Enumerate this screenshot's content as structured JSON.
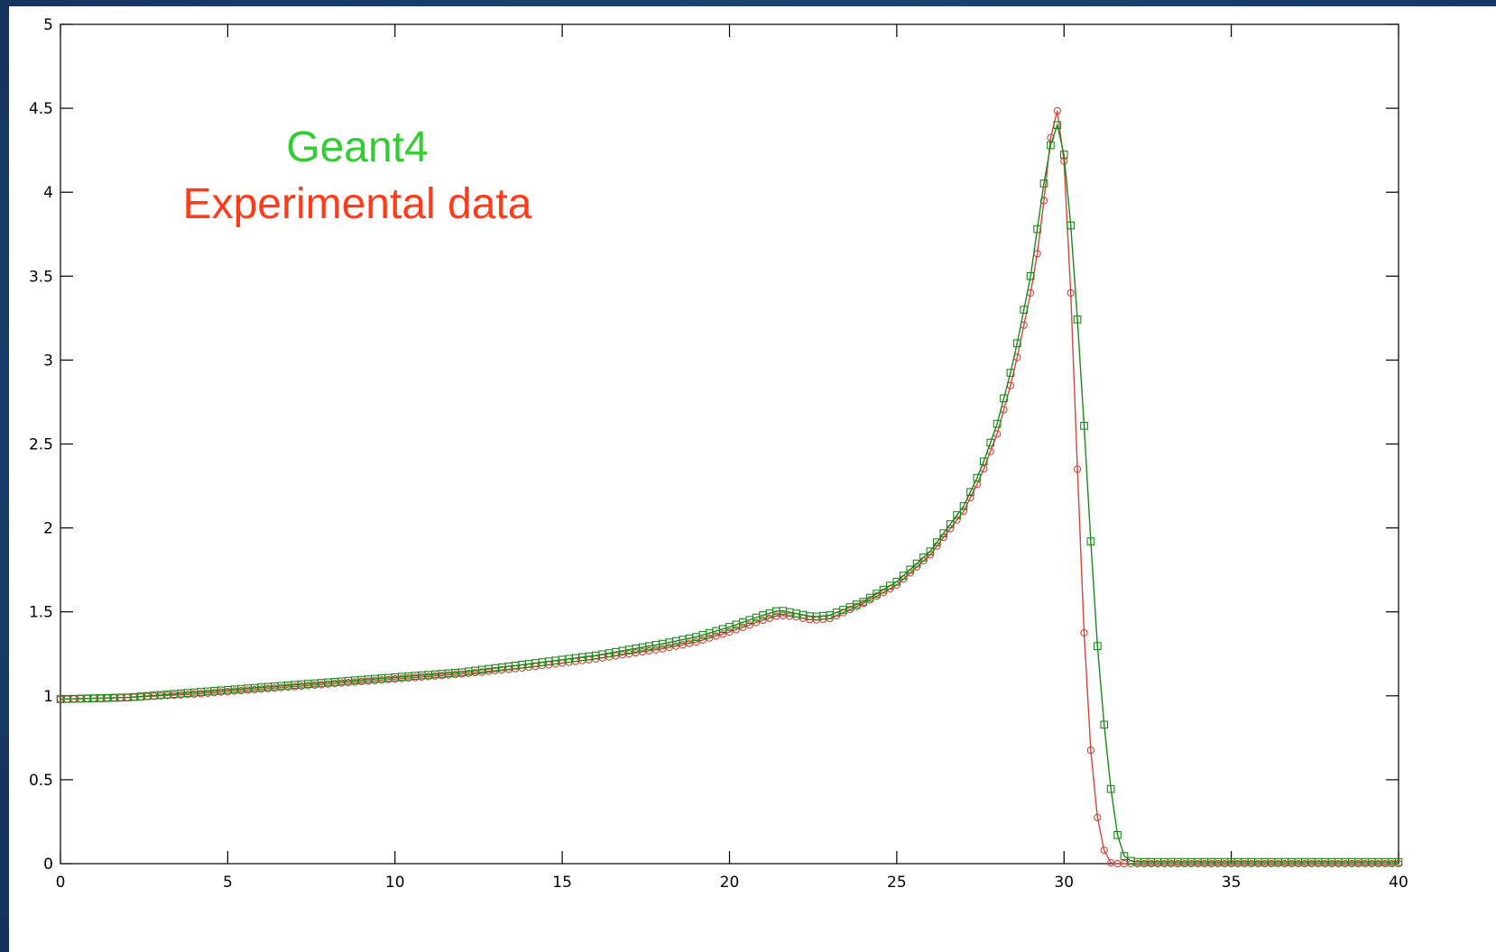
{
  "colors": {
    "background": "#1e4676",
    "plot_background": "#ffffff",
    "axis": "#000000",
    "experimental": "#e0402a",
    "experimental_marker": "#d2463c",
    "geant4": "#1a8a1a",
    "geant4_label": "#33cc33"
  },
  "annotations": {
    "geant4_label": "Geant4",
    "experimental_label": "Experimental data"
  },
  "chart_data": {
    "type": "line",
    "title": "",
    "xlabel": "",
    "ylabel": "",
    "xlim": [
      0,
      40
    ],
    "ylim": [
      0,
      5
    ],
    "grid": false,
    "x_ticks": [
      0,
      5,
      10,
      15,
      20,
      25,
      30,
      35,
      40
    ],
    "x_tick_labels": [
      "0",
      "5",
      "10",
      "15",
      "20",
      "25",
      "30",
      "35",
      "40"
    ],
    "y_ticks": [
      0,
      0.5,
      1,
      1.5,
      2,
      2.5,
      3,
      3.5,
      4,
      4.5,
      5
    ],
    "y_tick_labels": [
      "0",
      "0.5",
      "1",
      "1.5",
      "2",
      "2.5",
      "3",
      "3.5",
      "4",
      "4.5",
      "5"
    ],
    "series": [
      {
        "name": "Experimental data",
        "marker": "circle",
        "color": "#d2463c",
        "points": [
          [
            0,
            0.98
          ],
          [
            2,
            0.99
          ],
          [
            4,
            1.01
          ],
          [
            6,
            1.04
          ],
          [
            8,
            1.07
          ],
          [
            10,
            1.1
          ],
          [
            12,
            1.13
          ],
          [
            14,
            1.17
          ],
          [
            16,
            1.22
          ],
          [
            18,
            1.28
          ],
          [
            19,
            1.32
          ],
          [
            20,
            1.38
          ],
          [
            21,
            1.45
          ],
          [
            21.5,
            1.48
          ],
          [
            22,
            1.47
          ],
          [
            22.5,
            1.45
          ],
          [
            23,
            1.46
          ],
          [
            24,
            1.55
          ],
          [
            25,
            1.66
          ],
          [
            26,
            1.84
          ],
          [
            27,
            2.1
          ],
          [
            27.5,
            2.3
          ],
          [
            28,
            2.56
          ],
          [
            28.5,
            2.92
          ],
          [
            29,
            3.4
          ],
          [
            29.3,
            3.75
          ],
          [
            29.5,
            4.15
          ],
          [
            29.7,
            4.5
          ],
          [
            29.9,
            4.47
          ],
          [
            30.1,
            3.9
          ],
          [
            30.3,
            2.9
          ],
          [
            30.5,
            1.8
          ],
          [
            30.7,
            0.95
          ],
          [
            30.9,
            0.4
          ],
          [
            31.1,
            0.15
          ],
          [
            31.3,
            0.01
          ],
          [
            31.5,
            0
          ],
          [
            32,
            0
          ],
          [
            34,
            0
          ],
          [
            36,
            0
          ],
          [
            38,
            0
          ],
          [
            40,
            0
          ]
        ]
      },
      {
        "name": "Geant4",
        "marker": "square",
        "color": "#1a8a1a",
        "points": [
          [
            0,
            0.98
          ],
          [
            2,
            0.99
          ],
          [
            4,
            1.02
          ],
          [
            6,
            1.05
          ],
          [
            8,
            1.08
          ],
          [
            10,
            1.11
          ],
          [
            12,
            1.14
          ],
          [
            14,
            1.19
          ],
          [
            16,
            1.24
          ],
          [
            18,
            1.31
          ],
          [
            19,
            1.35
          ],
          [
            20,
            1.41
          ],
          [
            21,
            1.48
          ],
          [
            21.5,
            1.51
          ],
          [
            22,
            1.49
          ],
          [
            22.5,
            1.47
          ],
          [
            23,
            1.48
          ],
          [
            24,
            1.56
          ],
          [
            25,
            1.68
          ],
          [
            26,
            1.86
          ],
          [
            27,
            2.13
          ],
          [
            27.5,
            2.34
          ],
          [
            28,
            2.62
          ],
          [
            28.5,
            3.0
          ],
          [
            29,
            3.5
          ],
          [
            29.3,
            3.92
          ],
          [
            29.55,
            4.25
          ],
          [
            29.8,
            4.4
          ],
          [
            30.05,
            4.18
          ],
          [
            30.3,
            3.55
          ],
          [
            30.55,
            2.78
          ],
          [
            30.8,
            1.92
          ],
          [
            31.05,
            1.14
          ],
          [
            31.3,
            0.62
          ],
          [
            31.5,
            0.27
          ],
          [
            31.7,
            0.07
          ],
          [
            31.9,
            0.02
          ],
          [
            32.2,
            0.01
          ],
          [
            34,
            0.01
          ],
          [
            36,
            0.01
          ],
          [
            38,
            0.01
          ],
          [
            40,
            0.01
          ]
        ]
      }
    ]
  }
}
